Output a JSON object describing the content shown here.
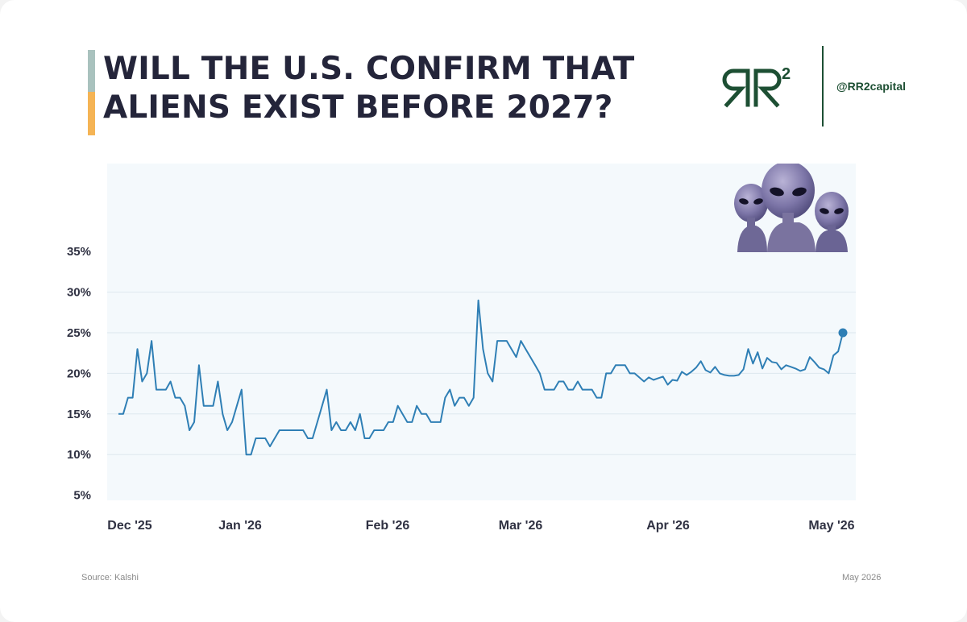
{
  "header": {
    "title_line1": "WILL THE U.S. CONFIRM THAT",
    "title_line2": "ALIENS EXIST BEFORE 2027?",
    "logo_text": "RR²",
    "handle": "@RR2capital",
    "brand_color": "#1d4f33"
  },
  "footer": {
    "source": "Source: Kalshi",
    "date": "May 2026"
  },
  "colors": {
    "accent_top": "#a9c2be",
    "accent_bottom": "#f5b455",
    "line": "#2f7fb5"
  },
  "decoration": {
    "image": "three-grey-aliens-illustration"
  },
  "chart_data": {
    "type": "line",
    "title": "",
    "xlabel": "",
    "ylabel": "",
    "ylim": [
      0,
      40
    ],
    "yticks": [
      "5%",
      "10%",
      "15%",
      "20%",
      "25%",
      "30%",
      "35%"
    ],
    "ytick_values": [
      5,
      10,
      15,
      20,
      25,
      30,
      35
    ],
    "xtick_labels": [
      "Dec '25",
      "Jan '26",
      "Feb '26",
      "Mar '26",
      "Apr '26",
      "May '26"
    ],
    "x_range": [
      "2025-12-01",
      "2026-05-01"
    ],
    "grid": true,
    "series": [
      {
        "points": [
          [
            "2025-12-01",
            15
          ],
          [
            "2025-12-02",
            15
          ],
          [
            "2025-12-03",
            17
          ],
          [
            "2025-12-04",
            17
          ],
          [
            "2025-12-05",
            23
          ],
          [
            "2025-12-06",
            19
          ],
          [
            "2025-12-07",
            20
          ],
          [
            "2025-12-08",
            24
          ],
          [
            "2025-12-09",
            18
          ],
          [
            "2025-12-10",
            18
          ],
          [
            "2025-12-11",
            18
          ],
          [
            "2025-12-12",
            19
          ],
          [
            "2025-12-13",
            17
          ],
          [
            "2025-12-14",
            17
          ],
          [
            "2025-12-15",
            16
          ],
          [
            "2025-12-16",
            13
          ],
          [
            "2025-12-17",
            14
          ],
          [
            "2025-12-18",
            21
          ],
          [
            "2025-12-19",
            16
          ],
          [
            "2025-12-20",
            16
          ],
          [
            "2025-12-21",
            16
          ],
          [
            "2025-12-22",
            19
          ],
          [
            "2025-12-23",
            15
          ],
          [
            "2025-12-24",
            13
          ],
          [
            "2025-12-25",
            14
          ],
          [
            "2025-12-26",
            16
          ],
          [
            "2025-12-27",
            18
          ],
          [
            "2025-12-28",
            10
          ],
          [
            "2025-12-29",
            10
          ],
          [
            "2025-12-30",
            12
          ],
          [
            "2025-12-31",
            12
          ],
          [
            "2026-01-01",
            12
          ],
          [
            "2026-01-02",
            11
          ],
          [
            "2026-01-03",
            12
          ],
          [
            "2026-01-04",
            13
          ],
          [
            "2026-01-05",
            13
          ],
          [
            "2026-01-06",
            13
          ],
          [
            "2026-01-07",
            13
          ],
          [
            "2026-01-08",
            13
          ],
          [
            "2026-01-09",
            13
          ],
          [
            "2026-01-10",
            12
          ],
          [
            "2026-01-11",
            12
          ],
          [
            "2026-01-12",
            14
          ],
          [
            "2026-01-13",
            16
          ],
          [
            "2026-01-14",
            18
          ],
          [
            "2026-01-15",
            13
          ],
          [
            "2026-01-16",
            14
          ],
          [
            "2026-01-17",
            13
          ],
          [
            "2026-01-18",
            13
          ],
          [
            "2026-01-19",
            14
          ],
          [
            "2026-01-20",
            13
          ],
          [
            "2026-01-21",
            15
          ],
          [
            "2026-01-22",
            12
          ],
          [
            "2026-01-23",
            12
          ],
          [
            "2026-01-24",
            13
          ],
          [
            "2026-01-25",
            13
          ],
          [
            "2026-01-26",
            13
          ],
          [
            "2026-01-27",
            14
          ],
          [
            "2026-01-28",
            14
          ],
          [
            "2026-01-29",
            16
          ],
          [
            "2026-01-30",
            15
          ],
          [
            "2026-01-31",
            14
          ],
          [
            "2026-02-01",
            14
          ],
          [
            "2026-02-02",
            16
          ],
          [
            "2026-02-03",
            15
          ],
          [
            "2026-02-04",
            15
          ],
          [
            "2026-02-05",
            14
          ],
          [
            "2026-02-06",
            14
          ],
          [
            "2026-02-07",
            14
          ],
          [
            "2026-02-08",
            17
          ],
          [
            "2026-02-09",
            18
          ],
          [
            "2026-02-10",
            16
          ],
          [
            "2026-02-11",
            17
          ],
          [
            "2026-02-12",
            17
          ],
          [
            "2026-02-13",
            16
          ],
          [
            "2026-02-14",
            17
          ],
          [
            "2026-02-15",
            29
          ],
          [
            "2026-02-16",
            23
          ],
          [
            "2026-02-17",
            20
          ],
          [
            "2026-02-18",
            19
          ],
          [
            "2026-02-19",
            24
          ],
          [
            "2026-02-20",
            24
          ],
          [
            "2026-02-21",
            24
          ],
          [
            "2026-02-22",
            23
          ],
          [
            "2026-02-23",
            22
          ],
          [
            "2026-02-24",
            24
          ],
          [
            "2026-02-25",
            23
          ],
          [
            "2026-02-26",
            22
          ],
          [
            "2026-02-27",
            21
          ],
          [
            "2026-02-28",
            20
          ],
          [
            "2026-03-01",
            18
          ],
          [
            "2026-03-02",
            18
          ],
          [
            "2026-03-03",
            18
          ],
          [
            "2026-03-04",
            19
          ],
          [
            "2026-03-05",
            19
          ],
          [
            "2026-03-06",
            18
          ],
          [
            "2026-03-07",
            18
          ],
          [
            "2026-03-08",
            19
          ],
          [
            "2026-03-09",
            18
          ],
          [
            "2026-03-10",
            18
          ],
          [
            "2026-03-11",
            18
          ],
          [
            "2026-03-12",
            17
          ],
          [
            "2026-03-13",
            17
          ],
          [
            "2026-03-14",
            20
          ],
          [
            "2026-03-15",
            20
          ],
          [
            "2026-03-16",
            21
          ],
          [
            "2026-03-17",
            21
          ],
          [
            "2026-03-18",
            21
          ],
          [
            "2026-03-19",
            20
          ],
          [
            "2026-03-20",
            20
          ],
          [
            "2026-03-21",
            19.5
          ],
          [
            "2026-03-22",
            19
          ],
          [
            "2026-03-23",
            19.5
          ],
          [
            "2026-03-24",
            19.2
          ],
          [
            "2026-03-25",
            19.4
          ],
          [
            "2026-03-26",
            19.6
          ],
          [
            "2026-03-27",
            18.6
          ],
          [
            "2026-03-28",
            19.2
          ],
          [
            "2026-03-29",
            19.1
          ],
          [
            "2026-03-30",
            20.2
          ],
          [
            "2026-03-31",
            19.8
          ],
          [
            "2026-04-01",
            20.2
          ],
          [
            "2026-04-02",
            20.7
          ],
          [
            "2026-04-03",
            21.5
          ],
          [
            "2026-04-04",
            20.4
          ],
          [
            "2026-04-05",
            20.1
          ],
          [
            "2026-04-06",
            20.8
          ],
          [
            "2026-04-07",
            20.0
          ],
          [
            "2026-04-08",
            19.8
          ],
          [
            "2026-04-09",
            19.7
          ],
          [
            "2026-04-10",
            19.7
          ],
          [
            "2026-04-11",
            19.8
          ],
          [
            "2026-04-12",
            20.5
          ],
          [
            "2026-04-13",
            23
          ],
          [
            "2026-04-14",
            21.2
          ],
          [
            "2026-04-15",
            22.6
          ],
          [
            "2026-04-16",
            20.6
          ],
          [
            "2026-04-17",
            21.9
          ],
          [
            "2026-04-18",
            21.4
          ],
          [
            "2026-04-19",
            21.3
          ],
          [
            "2026-04-20",
            20.5
          ],
          [
            "2026-04-21",
            21.0
          ],
          [
            "2026-04-22",
            20.8
          ],
          [
            "2026-04-23",
            20.6
          ],
          [
            "2026-04-24",
            20.3
          ],
          [
            "2026-04-25",
            20.5
          ],
          [
            "2026-04-26",
            22.0
          ],
          [
            "2026-04-27",
            21.4
          ],
          [
            "2026-04-28",
            20.7
          ],
          [
            "2026-04-29",
            20.5
          ],
          [
            "2026-04-30",
            20.0
          ],
          [
            "2026-05-01",
            22.2
          ],
          [
            "2026-05-02",
            22.7
          ],
          [
            "2026-05-03",
            25
          ]
        ]
      }
    ]
  }
}
